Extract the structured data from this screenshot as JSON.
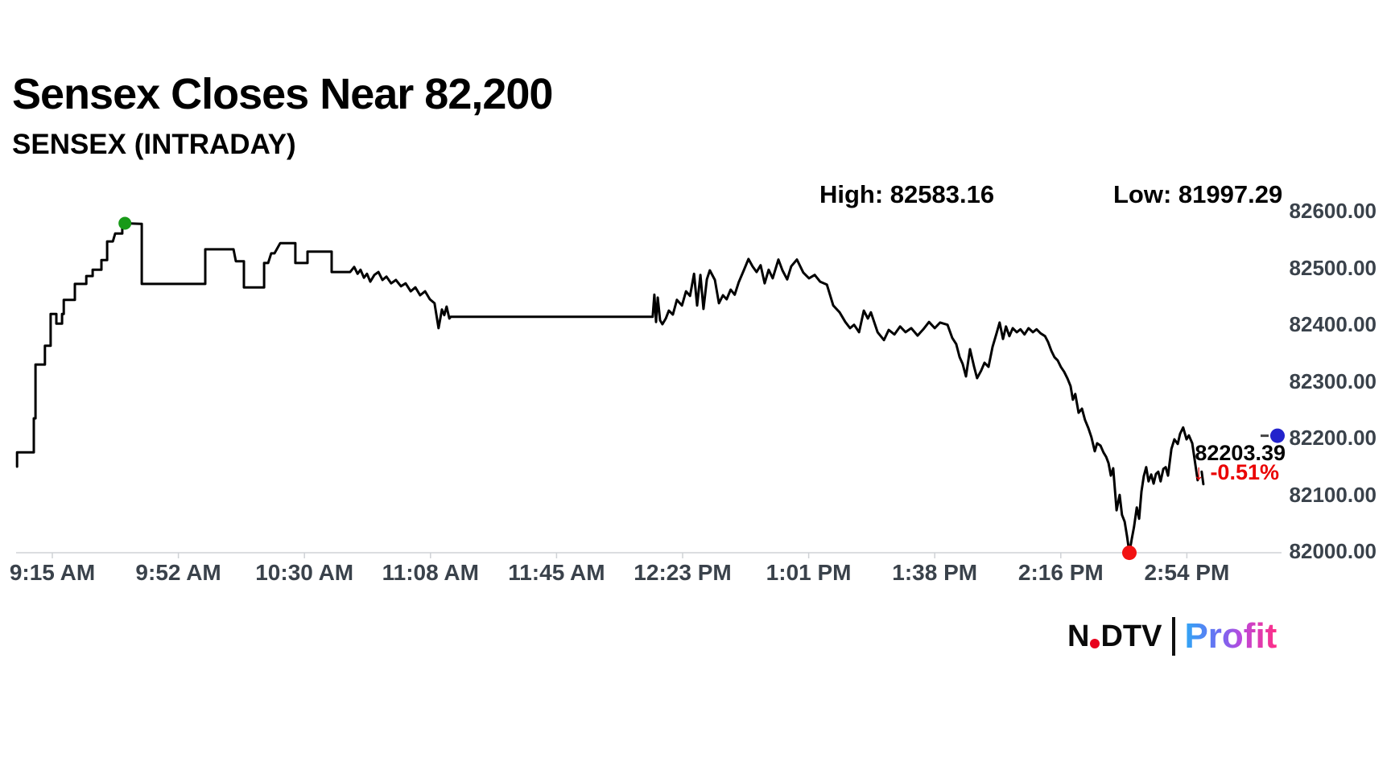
{
  "header": {
    "title": "Sensex Closes Near 82,200",
    "subtitle": "SENSEX (INTRADAY)",
    "high_label": "High: 82583.16",
    "low_label": "Low: 81997.29"
  },
  "last_value_panel": {
    "price": "82203.39",
    "change": "↓ -0.51%",
    "change_color": "#ea0000"
  },
  "branding": {
    "ndtv_prefix": "N",
    "ndtv_suffix": "DTV",
    "profit": "Profit",
    "ndtv_dot_color": "#e8001c"
  },
  "chart_data": {
    "type": "line",
    "title": "SENSEX (INTRADAY)",
    "x_unit": "minutes since 9:15 AM (pre-open ticks negative)",
    "session_high": 82583.16,
    "session_low": 81997.29,
    "last_price": 82203.39,
    "change_pct": "-0.51%",
    "ylim": [
      81940,
      82650
    ],
    "grid": false,
    "line_color": "#000000",
    "axis_line_color": "#cfd2d6",
    "y_ticks": [
      {
        "v": 82600,
        "label": "82600.00"
      },
      {
        "v": 82500,
        "label": "82500.00"
      },
      {
        "v": 82400,
        "label": "82400.00"
      },
      {
        "v": 82300,
        "label": "82300.00"
      },
      {
        "v": 82200,
        "label": "82200.00"
      },
      {
        "v": 82100,
        "label": "82100.00"
      },
      {
        "v": 82000,
        "label": "82000.00"
      }
    ],
    "x_ticks": [
      {
        "t": 0,
        "label": "9:15 AM"
      },
      {
        "t": 37.5,
        "label": "9:52 AM"
      },
      {
        "t": 75,
        "label": "10:30 AM"
      },
      {
        "t": 112.5,
        "label": "11:08 AM"
      },
      {
        "t": 150,
        "label": "11:45 AM"
      },
      {
        "t": 187.5,
        "label": "12:23 PM"
      },
      {
        "t": 225,
        "label": "1:01 PM"
      },
      {
        "t": 262.5,
        "label": "1:38 PM"
      },
      {
        "t": 300,
        "label": "2:16 PM"
      },
      {
        "t": 337.5,
        "label": "2:54 PM"
      }
    ],
    "markers": {
      "high": {
        "t": 21.6,
        "v": 82578,
        "color": "#189a18"
      },
      "low": {
        "t": 320.4,
        "v": 81997,
        "color": "#f21212"
      },
      "last": {
        "v": 82203.39,
        "color": "#2323cc"
      }
    },
    "series": [
      [
        -10.5,
        82149
      ],
      [
        -10.5,
        82174
      ],
      [
        -5.5,
        82174
      ],
      [
        -5.5,
        82234
      ],
      [
        -5.0,
        82234
      ],
      [
        -5.0,
        82329
      ],
      [
        -2.2,
        82329
      ],
      [
        -2.2,
        82362
      ],
      [
        -0.5,
        82362
      ],
      [
        -0.5,
        82418
      ],
      [
        1.2,
        82418
      ],
      [
        1.2,
        82401
      ],
      [
        2.9,
        82401
      ],
      [
        2.9,
        82418
      ],
      [
        3.4,
        82418
      ],
      [
        3.4,
        82443
      ],
      [
        6.7,
        82443
      ],
      [
        6.7,
        82471
      ],
      [
        10.1,
        82471
      ],
      [
        10.1,
        82485
      ],
      [
        12.0,
        82485
      ],
      [
        12.0,
        82496
      ],
      [
        14.6,
        82496
      ],
      [
        14.6,
        82513
      ],
      [
        16.3,
        82513
      ],
      [
        16.3,
        82546
      ],
      [
        18.0,
        82546
      ],
      [
        18.7,
        82560
      ],
      [
        20.8,
        82560
      ],
      [
        20.8,
        82574
      ],
      [
        21.6,
        82578
      ],
      [
        26.3,
        82577
      ],
      [
        26.6,
        82577
      ],
      [
        26.6,
        82471
      ],
      [
        45.5,
        82471
      ],
      [
        45.5,
        82532
      ],
      [
        53.9,
        82532
      ],
      [
        54.6,
        82511
      ],
      [
        57.0,
        82511
      ],
      [
        57.0,
        82465
      ],
      [
        63.0,
        82465
      ],
      [
        63.0,
        82508
      ],
      [
        64.2,
        82508
      ],
      [
        65.1,
        82525
      ],
      [
        66.1,
        82525
      ],
      [
        67.8,
        82543
      ],
      [
        72.3,
        82543
      ],
      [
        72.3,
        82508
      ],
      [
        75.9,
        82508
      ],
      [
        75.9,
        82528
      ],
      [
        83.1,
        82528
      ],
      [
        83.1,
        82492
      ],
      [
        88.6,
        82492
      ],
      [
        89.8,
        82501
      ],
      [
        90.8,
        82489
      ],
      [
        91.7,
        82496
      ],
      [
        92.7,
        82482
      ],
      [
        93.6,
        82489
      ],
      [
        94.6,
        82475
      ],
      [
        95.8,
        82487
      ],
      [
        97.0,
        82492
      ],
      [
        98.2,
        82478
      ],
      [
        99.4,
        82484
      ],
      [
        100.8,
        82472
      ],
      [
        102.2,
        82478
      ],
      [
        103.7,
        82467
      ],
      [
        105.1,
        82472
      ],
      [
        106.6,
        82458
      ],
      [
        108.0,
        82465
      ],
      [
        109.4,
        82451
      ],
      [
        110.9,
        82458
      ],
      [
        112.3,
        82444
      ],
      [
        113.7,
        82437
      ],
      [
        114.9,
        82393
      ],
      [
        115.9,
        82426
      ],
      [
        116.6,
        82416
      ],
      [
        117.3,
        82431
      ],
      [
        118.1,
        82410
      ],
      [
        118.5,
        82413
      ],
      [
        178.6,
        82413
      ],
      [
        179.1,
        82452
      ],
      [
        179.6,
        82404
      ],
      [
        180.1,
        82447
      ],
      [
        180.8,
        82407
      ],
      [
        181.5,
        82400
      ],
      [
        182.5,
        82410
      ],
      [
        183.4,
        82424
      ],
      [
        184.6,
        82417
      ],
      [
        185.8,
        82443
      ],
      [
        187.3,
        82433
      ],
      [
        188.5,
        82458
      ],
      [
        189.7,
        82450
      ],
      [
        190.9,
        82489
      ],
      [
        191.8,
        82433
      ],
      [
        192.8,
        82487
      ],
      [
        193.7,
        82427
      ],
      [
        194.7,
        82479
      ],
      [
        195.6,
        82495
      ],
      [
        197.1,
        82478
      ],
      [
        198.3,
        82437
      ],
      [
        199.5,
        82451
      ],
      [
        200.6,
        82444
      ],
      [
        201.8,
        82461
      ],
      [
        203.0,
        82452
      ],
      [
        204.2,
        82474
      ],
      [
        205.7,
        82495
      ],
      [
        207.1,
        82515
      ],
      [
        208.3,
        82502
      ],
      [
        209.5,
        82492
      ],
      [
        210.7,
        82504
      ],
      [
        211.9,
        82472
      ],
      [
        213.1,
        82496
      ],
      [
        214.3,
        82481
      ],
      [
        216.0,
        82514
      ],
      [
        217.2,
        82495
      ],
      [
        218.6,
        82479
      ],
      [
        219.8,
        82502
      ],
      [
        221.5,
        82514
      ],
      [
        223.4,
        82491
      ],
      [
        225.1,
        82481
      ],
      [
        226.8,
        82487
      ],
      [
        228.4,
        82475
      ],
      [
        230.4,
        82470
      ],
      [
        232.3,
        82433
      ],
      [
        234.2,
        82421
      ],
      [
        235.9,
        82404
      ],
      [
        237.3,
        82393
      ],
      [
        238.5,
        82399
      ],
      [
        240.0,
        82386
      ],
      [
        241.4,
        82424
      ],
      [
        242.6,
        82410
      ],
      [
        243.5,
        82421
      ],
      [
        245.5,
        82386
      ],
      [
        247.4,
        82372
      ],
      [
        248.8,
        82390
      ],
      [
        250.5,
        82382
      ],
      [
        252.2,
        82396
      ],
      [
        253.8,
        82386
      ],
      [
        255.5,
        82393
      ],
      [
        257.4,
        82380
      ],
      [
        259.1,
        82391
      ],
      [
        260.8,
        82404
      ],
      [
        262.5,
        82393
      ],
      [
        264.1,
        82403
      ],
      [
        266.3,
        82399
      ],
      [
        267.7,
        82376
      ],
      [
        268.9,
        82365
      ],
      [
        269.9,
        82342
      ],
      [
        270.8,
        82330
      ],
      [
        271.8,
        82308
      ],
      [
        273.0,
        82356
      ],
      [
        274.2,
        82325
      ],
      [
        275.1,
        82305
      ],
      [
        276.3,
        82318
      ],
      [
        277.3,
        82332
      ],
      [
        278.5,
        82325
      ],
      [
        279.7,
        82360
      ],
      [
        280.9,
        82384
      ],
      [
        281.8,
        82403
      ],
      [
        282.8,
        82374
      ],
      [
        283.7,
        82396
      ],
      [
        284.7,
        82379
      ],
      [
        285.7,
        82393
      ],
      [
        286.9,
        82386
      ],
      [
        288.0,
        82391
      ],
      [
        289.2,
        82382
      ],
      [
        290.4,
        82393
      ],
      [
        291.7,
        82386
      ],
      [
        292.8,
        82391
      ],
      [
        294.0,
        82384
      ],
      [
        295.3,
        82379
      ],
      [
        296.2,
        82369
      ],
      [
        297.2,
        82353
      ],
      [
        298.1,
        82342
      ],
      [
        299.1,
        82336
      ],
      [
        300.0,
        82325
      ],
      [
        301.0,
        82316
      ],
      [
        302.0,
        82304
      ],
      [
        302.9,
        82291
      ],
      [
        303.6,
        82267
      ],
      [
        304.3,
        82277
      ],
      [
        305.3,
        82244
      ],
      [
        306.3,
        82251
      ],
      [
        307.2,
        82231
      ],
      [
        308.2,
        82217
      ],
      [
        309.1,
        82201
      ],
      [
        310.1,
        82176
      ],
      [
        310.8,
        82190
      ],
      [
        311.8,
        82186
      ],
      [
        312.7,
        82174
      ],
      [
        313.5,
        82166
      ],
      [
        314.2,
        82155
      ],
      [
        314.9,
        82133
      ],
      [
        315.6,
        82146
      ],
      [
        316.6,
        82072
      ],
      [
        317.5,
        82099
      ],
      [
        318.2,
        82064
      ],
      [
        319.0,
        82052
      ],
      [
        319.7,
        82026
      ],
      [
        320.4,
        81997
      ],
      [
        321.1,
        82021
      ],
      [
        321.8,
        82043
      ],
      [
        322.6,
        82077
      ],
      [
        323.3,
        82057
      ],
      [
        324.0,
        82105
      ],
      [
        324.7,
        82132
      ],
      [
        325.4,
        82148
      ],
      [
        326.1,
        82123
      ],
      [
        326.9,
        82135
      ],
      [
        327.6,
        82119
      ],
      [
        328.3,
        82136
      ],
      [
        329.0,
        82140
      ],
      [
        329.7,
        82123
      ],
      [
        330.5,
        82145
      ],
      [
        331.2,
        82148
      ],
      [
        331.9,
        82133
      ],
      [
        332.9,
        82180
      ],
      [
        333.8,
        82197
      ],
      [
        334.8,
        82189
      ],
      [
        335.5,
        82207
      ],
      [
        336.4,
        82218
      ],
      [
        337.4,
        82197
      ],
      [
        338.1,
        82204
      ],
      [
        339.1,
        82190
      ],
      [
        339.8,
        82162
      ],
      [
        340.7,
        82125
      ]
    ],
    "fragment": [
      [
        341.9,
        82140
      ],
      [
        342.4,
        82118
      ]
    ]
  }
}
